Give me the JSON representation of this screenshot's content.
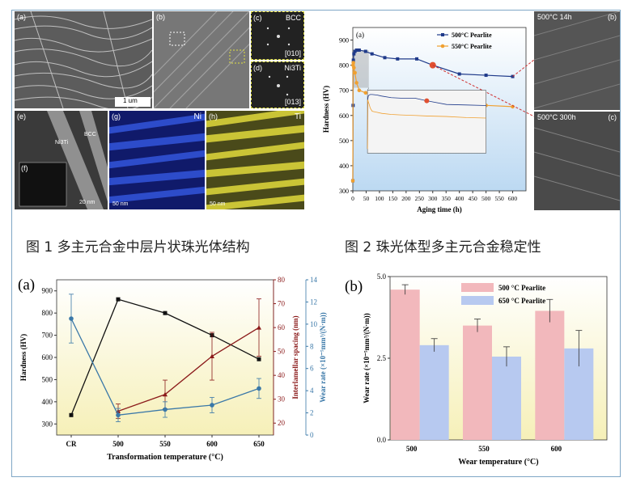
{
  "fig1": {
    "caption": "图 1 多主元合金中层片状珠光体结构",
    "panels": {
      "a": "(a)",
      "b": "(b)",
      "c": "(c)",
      "d": "(d)",
      "e": "(e)",
      "f": "(f)",
      "g": "(g)",
      "h": "(h)"
    },
    "scalebar_a": "1 um",
    "c_phase": "BCC",
    "c_zone": "[010]",
    "d_phase": "Ni3Ti",
    "d_zone": "[013]",
    "e_labels": [
      "Ni3Ti",
      "BCC"
    ],
    "e_scale": "20 nm",
    "g_element": "Ni",
    "g_scale": "50 nm",
    "h_element": "Ti",
    "h_scale": "50 nm",
    "colors": {
      "ni_map": "#1f3aa8",
      "ti_map": "#c8c236",
      "sem": "#6a6a6a"
    }
  },
  "fig2": {
    "caption": "图 2 珠光体型多主元合金稳定性",
    "panel": "(a)",
    "side_panels": {
      "b": "(b)",
      "c": "(c)",
      "b_label": "500°C 14h",
      "c_label": "500°C 300h"
    },
    "chart_data": {
      "type": "line",
      "xlabel": "Aging time (h)",
      "ylabel": "Hardness (HV)",
      "xlim": [
        0,
        650
      ],
      "ylim": [
        300,
        950
      ],
      "xticks": [
        0,
        50,
        100,
        150,
        200,
        250,
        300,
        350,
        400,
        450,
        500,
        550,
        600
      ],
      "yticks": [
        300,
        400,
        500,
        600,
        700,
        800,
        900
      ],
      "series": [
        {
          "name": "500°C Pearlite",
          "color": "#1f3a8a",
          "x": [
            0,
            1,
            2,
            4,
            8,
            14,
            24,
            48,
            72,
            120,
            168,
            240,
            300,
            400,
            500,
            600
          ],
          "y": [
            340,
            640,
            820,
            845,
            855,
            860,
            860,
            855,
            845,
            830,
            825,
            825,
            800,
            765,
            760,
            755
          ]
        },
        {
          "name": "550°C Pearlite",
          "color": "#f0a030",
          "x": [
            0,
            1,
            2,
            4,
            8,
            14,
            24,
            48,
            72,
            120,
            168,
            240,
            300,
            400,
            500,
            600
          ],
          "y": [
            340,
            800,
            810,
            790,
            770,
            730,
            700,
            690,
            680,
            670,
            665,
            660,
            655,
            650,
            640,
            635
          ]
        }
      ]
    }
  },
  "fig3": {
    "panel": "(a)",
    "chart_data": {
      "type": "line",
      "xlabel": "Transformation temperature (°C)",
      "categories": [
        "CR",
        "500",
        "550",
        "600",
        "650"
      ],
      "series": [
        {
          "name": "Hardness (HV)",
          "axis": "left",
          "color": "#111111",
          "values": [
            340,
            862,
            800,
            700,
            592
          ]
        },
        {
          "name": "Interlamellar spacing (nm)",
          "axis": "right1",
          "color": "#8b1a1a",
          "values": [
            null,
            25,
            32,
            48,
            60
          ],
          "errors": [
            null,
            3,
            6,
            10,
            12
          ]
        },
        {
          "name": "Wear rate (×10⁻⁵mm³/(N·m))",
          "axis": "right2",
          "color": "#3a78a8",
          "values": [
            10.5,
            1.8,
            2.3,
            2.7,
            4.2
          ],
          "errors": [
            2.2,
            0.6,
            0.7,
            0.7,
            0.9
          ]
        }
      ],
      "left_axis": {
        "label": "Hardness (HV)",
        "ticks": [
          300,
          400,
          500,
          600,
          700,
          800,
          900
        ]
      },
      "right1_axis": {
        "label": "Interlamellar spacing (nm)",
        "ticks": [
          20,
          30,
          40,
          50,
          60,
          70,
          80
        ]
      },
      "right2_axis": {
        "label": "Wear rate (×10⁻⁵mm³/(N·m))",
        "ticks": [
          0,
          2,
          4,
          6,
          8,
          10,
          12,
          14
        ]
      }
    }
  },
  "fig4": {
    "panel": "(b)",
    "chart_data": {
      "type": "bar",
      "xlabel": "Wear temperature (°C)",
      "ylabel": "Wear rate (×10⁻⁵mm³/(N·m))",
      "categories": [
        "500",
        "550",
        "600"
      ],
      "ylim": [
        0,
        5
      ],
      "yticks": [
        "0.0",
        "2.5",
        "5.0"
      ],
      "series": [
        {
          "name": "500 °C Pearlite",
          "color": "#f2b8bc",
          "values": [
            4.6,
            3.5,
            3.95
          ],
          "errors": [
            0.15,
            0.2,
            0.35
          ]
        },
        {
          "name": "650 °C Pearlite",
          "color": "#b7c9f0",
          "values": [
            2.9,
            2.55,
            2.8
          ],
          "errors": [
            0.2,
            0.3,
            0.55
          ]
        }
      ]
    }
  }
}
